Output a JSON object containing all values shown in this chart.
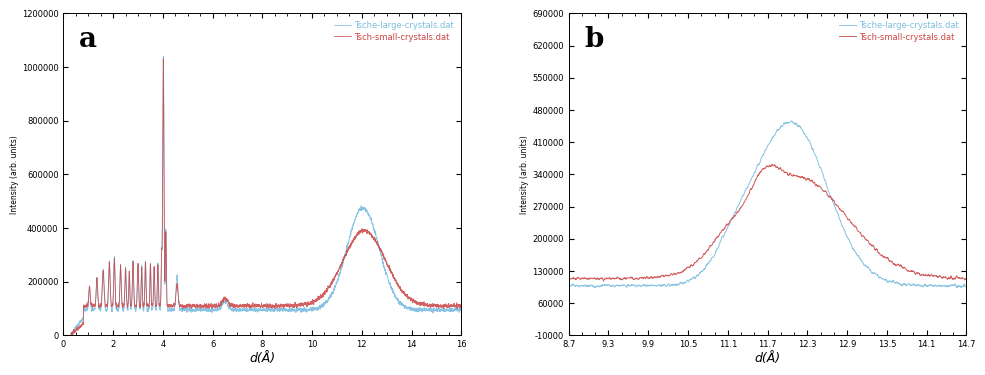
{
  "panel_a": {
    "label": "a",
    "xlabel": "d(Å)",
    "ylabel": "Intensity (arb. units)",
    "xlim": [
      0,
      16
    ],
    "ylim": [
      0,
      1200000
    ],
    "yticks": [
      0,
      200000,
      400000,
      600000,
      800000,
      1000000,
      1200000
    ],
    "xticks": [
      0,
      2,
      4,
      6,
      8,
      10,
      12,
      14,
      16
    ]
  },
  "panel_b": {
    "label": "b",
    "xlabel": "d(Å)",
    "ylabel": "Intensity (arb. units)",
    "xlim": [
      8.7,
      14.7
    ],
    "ylim": [
      -10000,
      690000
    ],
    "yticks": [
      -10000,
      60000,
      130000,
      200000,
      270000,
      340000,
      410000,
      480000,
      550000,
      620000,
      690000
    ],
    "xticks": [
      8.7,
      9.3,
      9.9,
      10.5,
      11.1,
      11.7,
      12.3,
      12.9,
      13.5,
      14.1,
      14.7
    ]
  },
  "legend_large": "Tsche-large-crystals.dat",
  "legend_small": "Tsch-small-crystals.dat",
  "color_large": "#7bbde0",
  "color_small": "#cc4444",
  "background_color": "#ffffff",
  "label_fontsize": 16,
  "tick_fontsize": 6,
  "legend_fontsize": 6
}
